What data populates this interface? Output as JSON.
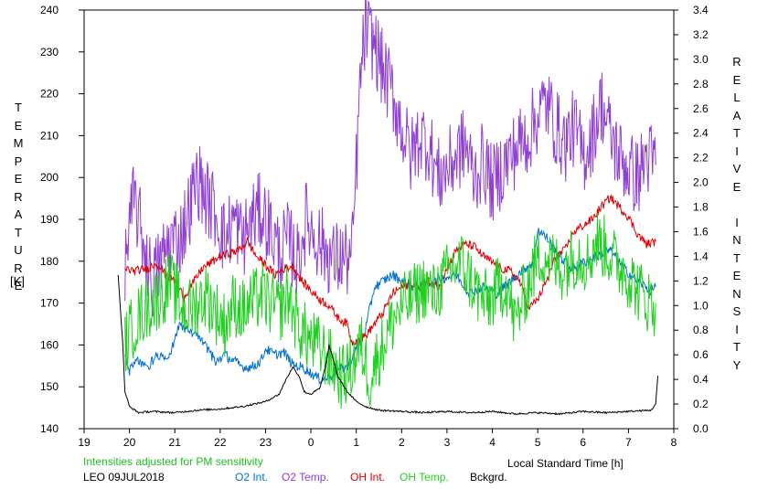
{
  "chart_data": {
    "type": "line",
    "xlabel": "Local Standard Time [h]",
    "ylabel_left": "TEMPERATURE",
    "ylabel_left_unit": "[K]",
    "ylabel_right": "RELATIVE INTENSITY",
    "x_ticks": [
      "19",
      "20",
      "21",
      "22",
      "23",
      "0",
      "1",
      "2",
      "3",
      "4",
      "5",
      "6",
      "7",
      "8"
    ],
    "xlim": [
      19,
      32
    ],
    "ylim_left": [
      140,
      240
    ],
    "y_ticks_left": [
      "140",
      "150",
      "160",
      "170",
      "180",
      "190",
      "200",
      "210",
      "220",
      "230",
      "240"
    ],
    "ylim_right": [
      0.0,
      3.4
    ],
    "y_ticks_right": [
      "0.0",
      "0.2",
      "0.4",
      "0.6",
      "0.8",
      "1.0",
      "1.2",
      "1.4",
      "1.6",
      "1.8",
      "2.0",
      "2.2",
      "2.4",
      "2.6",
      "2.8",
      "3.0",
      "3.2",
      "3.4"
    ],
    "note": "Intensities adjusted for PM sensitivity",
    "station": "LEO 09JUL2018",
    "grid": false,
    "series": [
      {
        "name": "O2 Int.",
        "color": "#0070d0",
        "axis": "right",
        "noise": 0.035,
        "points": [
          [
            19.9,
            0.6
          ],
          [
            20.0,
            0.47
          ],
          [
            20.2,
            0.55
          ],
          [
            20.4,
            0.5
          ],
          [
            20.6,
            0.6
          ],
          [
            20.8,
            0.55
          ],
          [
            20.9,
            0.6
          ],
          [
            21.1,
            0.85
          ],
          [
            21.3,
            0.8
          ],
          [
            21.5,
            0.75
          ],
          [
            21.7,
            0.65
          ],
          [
            21.9,
            0.55
          ],
          [
            22.1,
            0.6
          ],
          [
            22.3,
            0.55
          ],
          [
            22.5,
            0.5
          ],
          [
            22.7,
            0.5
          ],
          [
            22.9,
            0.55
          ],
          [
            23.0,
            0.65
          ],
          [
            23.2,
            0.6
          ],
          [
            23.4,
            0.62
          ],
          [
            23.6,
            0.52
          ],
          [
            23.8,
            0.5
          ],
          [
            23.9,
            0.48
          ],
          [
            24.0,
            0.45
          ],
          [
            24.2,
            0.4
          ],
          [
            24.4,
            0.42
          ],
          [
            24.6,
            0.48
          ],
          [
            24.8,
            0.5
          ],
          [
            25.0,
            0.65
          ],
          [
            25.2,
            0.8
          ],
          [
            25.4,
            1.15
          ],
          [
            25.6,
            1.2
          ],
          [
            25.8,
            1.25
          ],
          [
            26.0,
            1.2
          ],
          [
            26.3,
            1.15
          ],
          [
            26.6,
            1.18
          ],
          [
            26.9,
            1.22
          ],
          [
            27.2,
            1.25
          ],
          [
            27.5,
            1.1
          ],
          [
            27.8,
            1.15
          ],
          [
            28.1,
            1.1
          ],
          [
            28.4,
            1.2
          ],
          [
            28.7,
            1.3
          ],
          [
            28.9,
            1.35
          ],
          [
            29.0,
            1.62
          ],
          [
            29.2,
            1.55
          ],
          [
            29.4,
            1.45
          ],
          [
            29.6,
            1.35
          ],
          [
            29.8,
            1.3
          ],
          [
            30.0,
            1.35
          ],
          [
            30.3,
            1.4
          ],
          [
            30.6,
            1.45
          ],
          [
            30.9,
            1.3
          ],
          [
            31.2,
            1.2
          ],
          [
            31.5,
            1.12
          ],
          [
            31.6,
            1.15
          ]
        ]
      },
      {
        "name": "O2 Temp.",
        "color": "#9040d0",
        "axis": "left",
        "noise": 6,
        "points": [
          [
            19.9,
            180
          ],
          [
            20.1,
            195
          ],
          [
            20.3,
            185
          ],
          [
            20.5,
            175
          ],
          [
            20.7,
            180
          ],
          [
            20.9,
            185
          ],
          [
            21.1,
            185
          ],
          [
            21.3,
            192
          ],
          [
            21.5,
            200
          ],
          [
            21.7,
            195
          ],
          [
            21.9,
            192
          ],
          [
            22.1,
            185
          ],
          [
            22.3,
            190
          ],
          [
            22.5,
            185
          ],
          [
            22.7,
            190
          ],
          [
            22.9,
            192
          ],
          [
            23.1,
            188
          ],
          [
            23.3,
            182
          ],
          [
            23.5,
            185
          ],
          [
            23.7,
            180
          ],
          [
            23.9,
            190
          ],
          [
            24.1,
            186
          ],
          [
            24.3,
            183
          ],
          [
            24.5,
            180
          ],
          [
            24.7,
            181
          ],
          [
            24.9,
            180
          ],
          [
            25.0,
            202
          ],
          [
            25.1,
            225
          ],
          [
            25.2,
            235
          ],
          [
            25.4,
            232
          ],
          [
            25.6,
            225
          ],
          [
            25.8,
            220
          ],
          [
            26.0,
            212
          ],
          [
            26.2,
            205
          ],
          [
            26.4,
            210
          ],
          [
            26.6,
            208
          ],
          [
            26.8,
            200
          ],
          [
            27.0,
            202
          ],
          [
            27.2,
            205
          ],
          [
            27.4,
            208
          ],
          [
            27.6,
            200
          ],
          [
            27.8,
            204
          ],
          [
            28.0,
            198
          ],
          [
            28.2,
            202
          ],
          [
            28.4,
            205
          ],
          [
            28.6,
            208
          ],
          [
            28.8,
            210
          ],
          [
            29.0,
            215
          ],
          [
            29.2,
            218
          ],
          [
            29.4,
            212
          ],
          [
            29.6,
            208
          ],
          [
            29.8,
            212
          ],
          [
            30.0,
            205
          ],
          [
            30.2,
            210
          ],
          [
            30.4,
            218
          ],
          [
            30.6,
            210
          ],
          [
            30.8,
            205
          ],
          [
            31.0,
            202
          ],
          [
            31.2,
            200
          ],
          [
            31.4,
            205
          ],
          [
            31.6,
            203
          ]
        ]
      },
      {
        "name": "OH Int.",
        "color": "#e00000",
        "axis": "right",
        "noise": 0.03,
        "points": [
          [
            19.9,
            1.3
          ],
          [
            20.1,
            1.28
          ],
          [
            20.4,
            1.3
          ],
          [
            20.6,
            1.35
          ],
          [
            20.8,
            1.25
          ],
          [
            21.0,
            1.2
          ],
          [
            21.2,
            1.07
          ],
          [
            21.4,
            1.18
          ],
          [
            21.6,
            1.3
          ],
          [
            21.8,
            1.35
          ],
          [
            22.0,
            1.4
          ],
          [
            22.2,
            1.42
          ],
          [
            22.4,
            1.45
          ],
          [
            22.6,
            1.52
          ],
          [
            22.8,
            1.4
          ],
          [
            23.0,
            1.33
          ],
          [
            23.2,
            1.25
          ],
          [
            23.4,
            1.3
          ],
          [
            23.6,
            1.32
          ],
          [
            23.8,
            1.2
          ],
          [
            24.0,
            1.12
          ],
          [
            24.2,
            1.05
          ],
          [
            24.4,
            1.0
          ],
          [
            24.6,
            0.9
          ],
          [
            24.8,
            0.85
          ],
          [
            24.9,
            0.7
          ],
          [
            25.0,
            0.72
          ],
          [
            25.2,
            0.75
          ],
          [
            25.4,
            0.85
          ],
          [
            25.6,
            0.95
          ],
          [
            25.8,
            1.1
          ],
          [
            26.0,
            1.15
          ],
          [
            26.2,
            1.18
          ],
          [
            26.4,
            1.15
          ],
          [
            26.6,
            1.2
          ],
          [
            26.8,
            1.15
          ],
          [
            27.0,
            1.3
          ],
          [
            27.2,
            1.45
          ],
          [
            27.4,
            1.5
          ],
          [
            27.6,
            1.48
          ],
          [
            27.8,
            1.4
          ],
          [
            28.0,
            1.35
          ],
          [
            28.2,
            1.3
          ],
          [
            28.4,
            1.28
          ],
          [
            28.6,
            1.2
          ],
          [
            28.8,
            0.98
          ],
          [
            29.0,
            1.05
          ],
          [
            29.2,
            1.2
          ],
          [
            29.4,
            1.4
          ],
          [
            29.6,
            1.45
          ],
          [
            29.8,
            1.6
          ],
          [
            30.0,
            1.65
          ],
          [
            30.2,
            1.7
          ],
          [
            30.4,
            1.8
          ],
          [
            30.6,
            1.88
          ],
          [
            30.8,
            1.8
          ],
          [
            31.0,
            1.72
          ],
          [
            31.2,
            1.58
          ],
          [
            31.4,
            1.5
          ],
          [
            31.6,
            1.52
          ]
        ]
      },
      {
        "name": "OH Temp.",
        "color": "#20d020",
        "axis": "left",
        "noise": 5,
        "points": [
          [
            19.9,
            160
          ],
          [
            20.1,
            165
          ],
          [
            20.3,
            168
          ],
          [
            20.5,
            170
          ],
          [
            20.7,
            172
          ],
          [
            20.9,
            175
          ],
          [
            21.1,
            170
          ],
          [
            21.3,
            168
          ],
          [
            21.5,
            170
          ],
          [
            21.7,
            172
          ],
          [
            21.9,
            168
          ],
          [
            22.1,
            165
          ],
          [
            22.3,
            170
          ],
          [
            22.5,
            168
          ],
          [
            22.7,
            170
          ],
          [
            22.9,
            172
          ],
          [
            23.1,
            170
          ],
          [
            23.3,
            168
          ],
          [
            23.5,
            172
          ],
          [
            23.7,
            165
          ],
          [
            23.9,
            162
          ],
          [
            24.1,
            160
          ],
          [
            24.3,
            158
          ],
          [
            24.5,
            155
          ],
          [
            24.7,
            152
          ],
          [
            24.9,
            155
          ],
          [
            25.1,
            160
          ],
          [
            25.3,
            152
          ],
          [
            25.5,
            158
          ],
          [
            25.7,
            163
          ],
          [
            25.9,
            168
          ],
          [
            26.1,
            170
          ],
          [
            26.3,
            172
          ],
          [
            26.5,
            174
          ],
          [
            26.7,
            172
          ],
          [
            26.9,
            175
          ],
          [
            27.1,
            178
          ],
          [
            27.3,
            180
          ],
          [
            27.5,
            176
          ],
          [
            27.7,
            172
          ],
          [
            27.9,
            170
          ],
          [
            28.1,
            173
          ],
          [
            28.3,
            175
          ],
          [
            28.5,
            165
          ],
          [
            28.7,
            172
          ],
          [
            28.9,
            178
          ],
          [
            29.1,
            182
          ],
          [
            29.3,
            180
          ],
          [
            29.5,
            178
          ],
          [
            29.7,
            180
          ],
          [
            29.9,
            182
          ],
          [
            30.1,
            180
          ],
          [
            30.3,
            185
          ],
          [
            30.5,
            183
          ],
          [
            30.7,
            180
          ],
          [
            30.9,
            178
          ],
          [
            31.1,
            175
          ],
          [
            31.3,
            172
          ],
          [
            31.5,
            170
          ],
          [
            31.6,
            170
          ]
        ]
      },
      {
        "name": "Bckgrd.",
        "color": "#000000",
        "axis": "right",
        "noise": 0.006,
        "points": [
          [
            19.75,
            1.25
          ],
          [
            19.85,
            0.7
          ],
          [
            19.9,
            0.3
          ],
          [
            20.0,
            0.18
          ],
          [
            20.2,
            0.13
          ],
          [
            20.5,
            0.14
          ],
          [
            21.0,
            0.13
          ],
          [
            21.5,
            0.15
          ],
          [
            22.0,
            0.16
          ],
          [
            22.5,
            0.18
          ],
          [
            23.0,
            0.22
          ],
          [
            23.3,
            0.28
          ],
          [
            23.45,
            0.4
          ],
          [
            23.6,
            0.5
          ],
          [
            23.75,
            0.42
          ],
          [
            23.85,
            0.3
          ],
          [
            24.0,
            0.28
          ],
          [
            24.2,
            0.33
          ],
          [
            24.35,
            0.55
          ],
          [
            24.4,
            0.68
          ],
          [
            24.5,
            0.55
          ],
          [
            24.6,
            0.42
          ],
          [
            24.8,
            0.3
          ],
          [
            25.0,
            0.22
          ],
          [
            25.2,
            0.18
          ],
          [
            25.5,
            0.15
          ],
          [
            26.0,
            0.14
          ],
          [
            26.5,
            0.13
          ],
          [
            27.0,
            0.14
          ],
          [
            27.5,
            0.13
          ],
          [
            28.0,
            0.14
          ],
          [
            28.5,
            0.12
          ],
          [
            29.0,
            0.13
          ],
          [
            29.5,
            0.12
          ],
          [
            30.0,
            0.14
          ],
          [
            30.5,
            0.13
          ],
          [
            31.0,
            0.14
          ],
          [
            31.5,
            0.15
          ],
          [
            31.6,
            0.2
          ],
          [
            31.65,
            0.43
          ]
        ]
      }
    ]
  }
}
